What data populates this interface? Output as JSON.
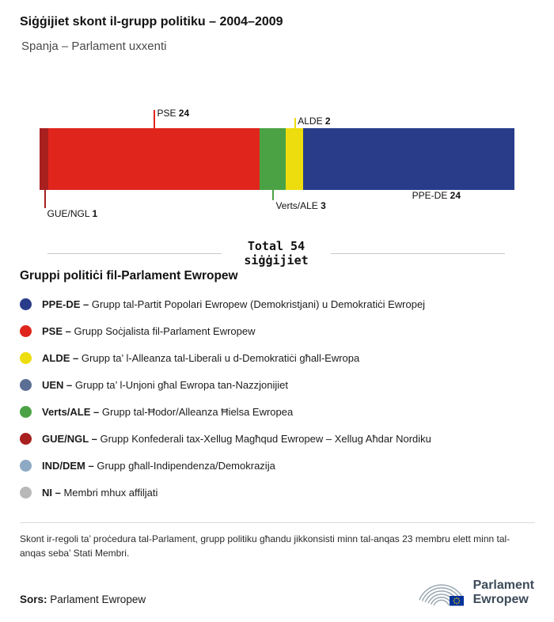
{
  "header": {
    "title": "Siġġijiet skont il-grupp politiku – 2004–2009",
    "subtitle": "Spanja – Parlament uxxenti"
  },
  "chart_data": {
    "type": "bar",
    "variant": "horizontal-stacked-single-bar",
    "title": "Siġġijiet skont il-grupp politiku – 2004–2009",
    "subtitle": "Spanja – Parlament uxxenti",
    "total": 54,
    "total_label_line1": "Total 54",
    "total_label_line2": "siġġijiet",
    "unit": "siġġijiet",
    "segments": [
      {
        "group": "GUE/NGL",
        "seats": 1,
        "color": "#a8201f",
        "label_side": "below",
        "tick_level": 2
      },
      {
        "group": "PSE",
        "seats": 24,
        "color": "#e0251c",
        "label_side": "above",
        "tick_level": 2
      },
      {
        "group": "Verts/ALE",
        "seats": 3,
        "color": "#4ba244",
        "label_side": "below",
        "tick_level": 1
      },
      {
        "group": "ALDE",
        "seats": 2,
        "color": "#eddd0e",
        "label_side": "above",
        "tick_level": 1
      },
      {
        "group": "PPE-DE",
        "seats": 24,
        "color": "#283c8a",
        "label_side": "below",
        "tick_level": 0
      }
    ]
  },
  "legend": {
    "title": "Gruppi politiċi fil-Parlament Ewropew",
    "separator": "–",
    "items": [
      {
        "name": "PPE-DE",
        "description": "Grupp tal-Partit Popolari Ewropew (Demokristjani) u Demokratiċi Ewropej",
        "color": "#283c8a"
      },
      {
        "name": "PSE",
        "description": "Grupp Soċjalista fil-Parlament Ewropew",
        "color": "#e0251c"
      },
      {
        "name": "ALDE",
        "description": "Grupp ta’ l-Alleanza tal-Liberali u d-Demokratiċi għall-Ewropa",
        "color": "#eddd0e"
      },
      {
        "name": "UEN",
        "description": "Grupp ta’ l-Unjoni għal Ewropa tan-Nazzjonijiet",
        "color": "#5b6e94"
      },
      {
        "name": "Verts/ALE",
        "description": "Grupp tal-Ħodor/Alleanza Ħielsa Ewropea",
        "color": "#4ba244"
      },
      {
        "name": "GUE/NGL",
        "description": "Grupp Konfederali tax-Xellug Magħqud Ewropew – Xellug Aħdar Nordiku",
        "color": "#a8201f"
      },
      {
        "name": "IND/DEM",
        "description": "Grupp għall-Indipendenza/Demokrazija",
        "color": "#8da9c4"
      },
      {
        "name": "NI",
        "description": "Membri mhux affiljati",
        "color": "#b8b8b8"
      }
    ]
  },
  "footnote": "Skont ir-regoli ta’ proċedura tal-Parlament, grupp politiku għandu jikkonsisti minn tal-anqas 23 membru elett minn tal-anqas seba’ Stati Membri.",
  "source": {
    "label": "Sors:",
    "value": "Parlament Ewropew"
  },
  "logo": {
    "line1": "Parlament",
    "line2": "Ewropew"
  }
}
